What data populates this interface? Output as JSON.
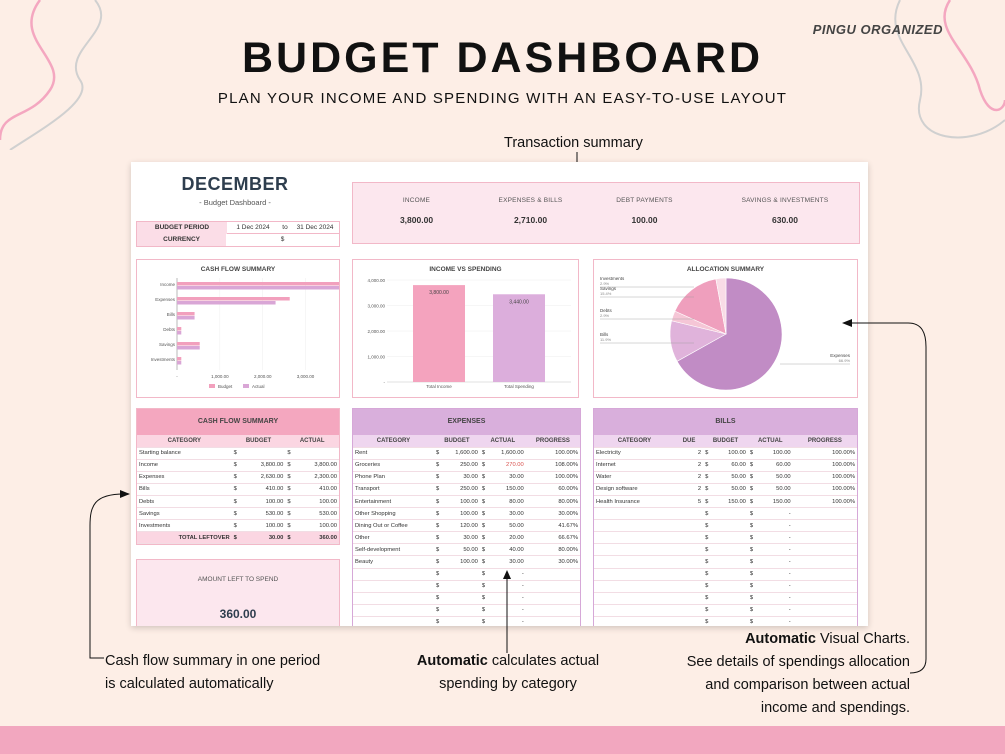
{
  "brand": "PINGU ORGANIZED",
  "title": "BUDGET DASHBOARD",
  "subtitle": "PLAN YOUR INCOME AND SPENDING WITH AN EASY-TO-USE LAYOUT",
  "callouts": {
    "transaction": "Transaction summary",
    "cashflow_line1": "Cash flow summary in one period",
    "cashflow_line2": "is calculated automatically",
    "auto_bold": "Automatic",
    "auto_rest": " calculates actual",
    "auto_line2": "spending by category",
    "charts_bold": "Automatic",
    "charts_rest": " Visual Charts.",
    "charts_line2": "See details of spendings allocation",
    "charts_line3": "and comparison between actual",
    "charts_line4": "income and spendings."
  },
  "sheet": {
    "month": "DECEMBER",
    "month_sub": "- Budget Dashboard -",
    "period_label": "BUDGET PERIOD",
    "period_start": "1 Dec 2024",
    "period_to": "to",
    "period_end": "31 Dec 2024",
    "currency_label": "CURRENCY",
    "currency_value": "$",
    "summary": [
      {
        "label": "INCOME",
        "value": "3,800.00"
      },
      {
        "label": "EXPENSES & BILLS",
        "value": "2,710.00"
      },
      {
        "label": "DEBT PAYMENTS",
        "value": "100.00"
      },
      {
        "label": "SAVINGS & INVESTMENTS",
        "value": "630.00"
      }
    ],
    "amount_left_label": "AMOUNT LEFT TO SPEND",
    "amount_left_value": "360.00"
  },
  "charts": {
    "cashflow": {
      "title": "CASH FLOW SUMMARY",
      "categories": [
        "Income",
        "Expenses",
        "Bills",
        "Debts",
        "Savings",
        "Investments"
      ],
      "budget": [
        3800,
        2630,
        410,
        100,
        530,
        100
      ],
      "actual": [
        3800,
        2300,
        410,
        100,
        530,
        100
      ],
      "ticks": [
        "-",
        "1,000.00",
        "2,000.00",
        "3,000.00"
      ],
      "legend_budget": "Budget",
      "legend_actual": "Actual",
      "colors": {
        "budget": "#f2a0bd",
        "actual": "#d9a6d6"
      }
    },
    "income_vs_spending": {
      "title": "INCOME VS SPENDING",
      "categories": [
        "Total Income",
        "Total Spending"
      ],
      "values": [
        3800,
        3440
      ],
      "labels": [
        "3,800.00",
        "3,440.00"
      ],
      "ticks": [
        "-",
        "1,000.00",
        "2,000.00",
        "3,000.00",
        "4,000.00"
      ],
      "colors": [
        "#f4a3be",
        "#dcaedc"
      ]
    },
    "allocation": {
      "title": "ALLOCATION SUMMARY",
      "slices": [
        {
          "name": "Expenses",
          "pct": "66.9%",
          "value": 66.9,
          "color": "#c18cc5"
        },
        {
          "name": "Bills",
          "pct": "11.9%",
          "value": 11.9,
          "color": "#e0b3db"
        },
        {
          "name": "Debts",
          "pct": "2.9%",
          "value": 2.9,
          "color": "#f5c6d6"
        },
        {
          "name": "Savings",
          "pct": "15.4%",
          "value": 15.4,
          "color": "#ef9fbd"
        },
        {
          "name": "Investments",
          "pct": "2.9%",
          "value": 2.9,
          "color": "#f9dce6"
        }
      ]
    }
  },
  "cashflow_table": {
    "title": "CASH FLOW SUMMARY",
    "headers": [
      "CATEGORY",
      "BUDGET",
      "ACTUAL"
    ],
    "rows": [
      {
        "cat": "Starting balance",
        "budget": "",
        "actual": ""
      },
      {
        "cat": "Income",
        "budget": "3,800.00",
        "actual": "3,800.00"
      },
      {
        "cat": "Expenses",
        "budget": "2,630.00",
        "actual": "2,300.00"
      },
      {
        "cat": "Bills",
        "budget": "410.00",
        "actual": "410.00"
      },
      {
        "cat": "Debts",
        "budget": "100.00",
        "actual": "100.00"
      },
      {
        "cat": "Savings",
        "budget": "530.00",
        "actual": "530.00"
      },
      {
        "cat": "Investments",
        "budget": "100.00",
        "actual": "100.00"
      }
    ],
    "total_label": "TOTAL LEFTOVER",
    "total_budget": "30.00",
    "total_actual": "360.00"
  },
  "expenses_table": {
    "title": "EXPENSES",
    "headers": [
      "CATEGORY",
      "BUDGET",
      "ACTUAL",
      "PROGRESS"
    ],
    "rows": [
      {
        "cat": "Rent",
        "budget": "1,600.00",
        "actual": "1,600.00",
        "progress": "100.00%",
        "over": false
      },
      {
        "cat": "Groceries",
        "budget": "250.00",
        "actual": "270.00",
        "progress": "108.00%",
        "over": true
      },
      {
        "cat": "Phone Plan",
        "budget": "30.00",
        "actual": "30.00",
        "progress": "100.00%",
        "over": false
      },
      {
        "cat": "Transport",
        "budget": "250.00",
        "actual": "150.00",
        "progress": "60.00%",
        "over": false
      },
      {
        "cat": "Entertainment",
        "budget": "100.00",
        "actual": "80.00",
        "progress": "80.00%",
        "over": false
      },
      {
        "cat": "Other Shopping",
        "budget": "100.00",
        "actual": "30.00",
        "progress": "30.00%",
        "over": false
      },
      {
        "cat": "Dining Out or Coffee",
        "budget": "120.00",
        "actual": "50.00",
        "progress": "41.67%",
        "over": false
      },
      {
        "cat": "Other",
        "budget": "30.00",
        "actual": "20.00",
        "progress": "66.67%",
        "over": false
      },
      {
        "cat": "Self-development",
        "budget": "50.00",
        "actual": "40.00",
        "progress": "80.00%",
        "over": false
      },
      {
        "cat": "Beauty",
        "budget": "100.00",
        "actual": "30.00",
        "progress": "30.00%",
        "over": false
      },
      {
        "cat": "",
        "budget": "",
        "actual": "-",
        "progress": "",
        "over": false
      },
      {
        "cat": "",
        "budget": "",
        "actual": "-",
        "progress": "",
        "over": false
      },
      {
        "cat": "",
        "budget": "",
        "actual": "-",
        "progress": "",
        "over": false
      },
      {
        "cat": "",
        "budget": "",
        "actual": "-",
        "progress": "",
        "over": false
      },
      {
        "cat": "",
        "budget": "",
        "actual": "-",
        "progress": "",
        "over": false
      }
    ]
  },
  "bills_table": {
    "title": "BILLS",
    "headers": [
      "CATEGORY",
      "DUE",
      "BUDGET",
      "ACTUAL",
      "PROGRESS"
    ],
    "rows": [
      {
        "cat": "Electricity",
        "due": "2",
        "budget": "100.00",
        "actual": "100.00",
        "progress": "100.00%"
      },
      {
        "cat": "Internet",
        "due": "2",
        "budget": "60.00",
        "actual": "60.00",
        "progress": "100.00%"
      },
      {
        "cat": "Water",
        "due": "2",
        "budget": "50.00",
        "actual": "50.00",
        "progress": "100.00%"
      },
      {
        "cat": "Design software",
        "due": "2",
        "budget": "50.00",
        "actual": "50.00",
        "progress": "100.00%"
      },
      {
        "cat": "Health Insurance",
        "due": "5",
        "budget": "150.00",
        "actual": "150.00",
        "progress": "100.00%"
      },
      {
        "cat": "",
        "due": "",
        "budget": "",
        "actual": "-",
        "progress": ""
      },
      {
        "cat": "",
        "due": "",
        "budget": "",
        "actual": "-",
        "progress": ""
      },
      {
        "cat": "",
        "due": "",
        "budget": "",
        "actual": "-",
        "progress": ""
      },
      {
        "cat": "",
        "due": "",
        "budget": "",
        "actual": "-",
        "progress": ""
      },
      {
        "cat": "",
        "due": "",
        "budget": "",
        "actual": "-",
        "progress": ""
      },
      {
        "cat": "",
        "due": "",
        "budget": "",
        "actual": "-",
        "progress": ""
      },
      {
        "cat": "",
        "due": "",
        "budget": "",
        "actual": "-",
        "progress": ""
      },
      {
        "cat": "",
        "due": "",
        "budget": "",
        "actual": "-",
        "progress": ""
      },
      {
        "cat": "",
        "due": "",
        "budget": "",
        "actual": "-",
        "progress": ""
      },
      {
        "cat": "",
        "due": "",
        "budget": "",
        "actual": "-",
        "progress": ""
      }
    ]
  },
  "currency_symbol": "$"
}
